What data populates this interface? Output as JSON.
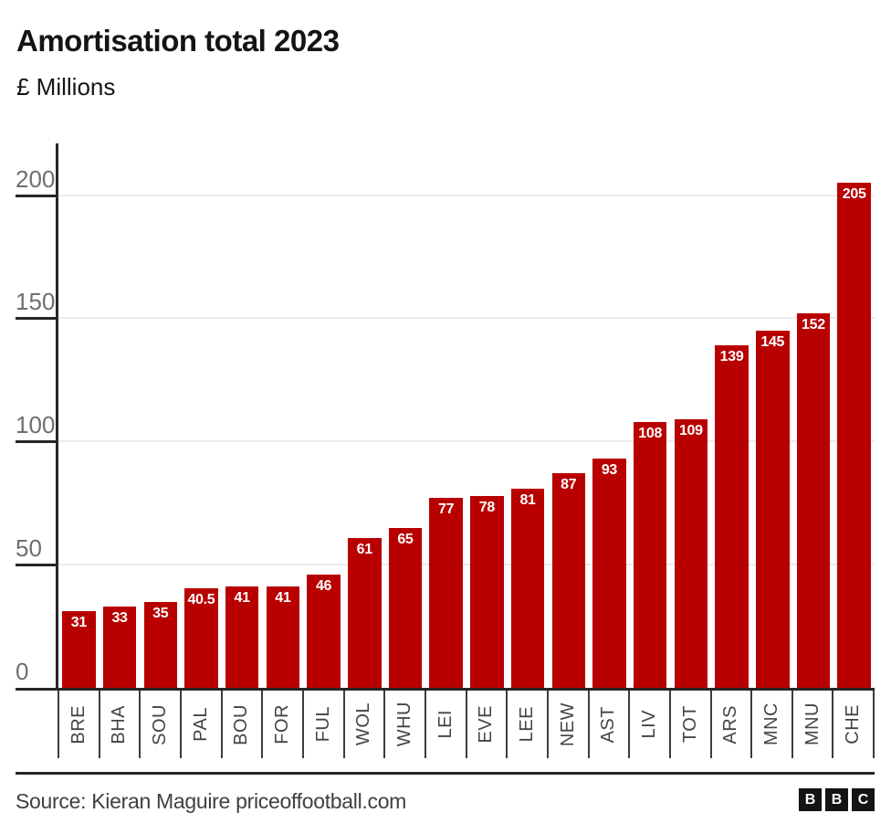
{
  "header": {
    "title": "Amortisation total 2023",
    "subtitle": "£ Millions"
  },
  "chart_data": {
    "type": "bar",
    "title": "Amortisation total 2023",
    "ylabel": "£ Millions",
    "xlabel": "",
    "categories": [
      "BRE",
      "BHA",
      "SOU",
      "PAL",
      "BOU",
      "FOR",
      "FUL",
      "WOL",
      "WHU",
      "LEI",
      "EVE",
      "LEE",
      "NEW",
      "AST",
      "LIV",
      "TOT",
      "ARS",
      "MNC",
      "MNU",
      "CHE"
    ],
    "values": [
      31,
      33,
      35,
      40.5,
      41,
      41,
      46,
      61,
      65,
      77,
      78,
      81,
      87,
      93,
      108,
      109,
      139,
      145,
      152,
      205
    ],
    "value_labels": [
      "31",
      "33",
      "35",
      "40.5",
      "41",
      "41",
      "46",
      "61",
      "65",
      "77",
      "78",
      "81",
      "87",
      "93",
      "108",
      "109",
      "139",
      "145",
      "152",
      "205"
    ],
    "yticks": [
      0,
      50,
      100,
      150,
      200
    ],
    "ylim": [
      0,
      221
    ],
    "grid": true,
    "legend_position": "none",
    "bar_color": "#b80000",
    "value_label_color": "#ffffff"
  },
  "footer": {
    "source": "Source: Kieran Maguire priceoffootball.com",
    "logo_letters": [
      "B",
      "B",
      "C"
    ]
  },
  "colors": {
    "bar": "#b80000",
    "axis": "#262626",
    "gridline": "#ebebeb",
    "y_tick_label": "#6e6e73",
    "x_tick_label": "#444446",
    "title": "#141414",
    "source_text": "#404040",
    "background": "#ffffff"
  }
}
